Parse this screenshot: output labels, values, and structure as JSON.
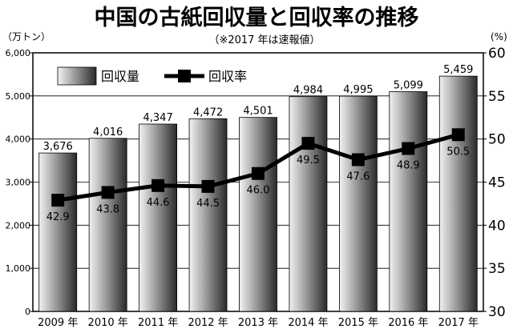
{
  "chart_data": {
    "type": "bar+line",
    "title": "中国の古紙回収量と回収率の推移",
    "subtitle": "（※2017 年は速報値）",
    "left_axis_unit": "（万トン）",
    "right_axis_unit": "(%)",
    "categories": [
      "2009 年",
      "2010 年",
      "2011 年",
      "2012 年",
      "2013 年",
      "2014 年",
      "2015 年",
      "2016 年",
      "2017 年"
    ],
    "series": [
      {
        "name": "回収量",
        "kind": "bar",
        "axis": "left",
        "values": [
          3676,
          4016,
          4347,
          4472,
          4501,
          4984,
          4995,
          5099,
          5459
        ],
        "labels": [
          "3,676",
          "4,016",
          "4,347",
          "4,472",
          "4,501",
          "4,984",
          "4,995",
          "5,099",
          "5,459"
        ]
      },
      {
        "name": "回収率",
        "kind": "line",
        "axis": "right",
        "values": [
          42.9,
          43.8,
          44.6,
          44.5,
          46.0,
          49.5,
          47.6,
          48.9,
          50.5
        ],
        "labels": [
          "42.9",
          "43.8",
          "44.6",
          "44.5",
          "46.0",
          "49.5",
          "47.6",
          "48.9",
          "50.5"
        ]
      }
    ],
    "y_left": {
      "min": 0,
      "max": 6000,
      "ticks": [
        0,
        1000,
        2000,
        3000,
        4000,
        5000,
        6000
      ],
      "tick_labels": [
        "0",
        "1,000",
        "2,000",
        "3,000",
        "4,000",
        "5,000",
        "6,000"
      ]
    },
    "y_right": {
      "min": 30,
      "max": 60,
      "ticks": [
        30,
        35,
        40,
        45,
        50,
        55,
        60
      ],
      "tick_labels": [
        "30",
        "35",
        "40",
        "45",
        "50",
        "55",
        "60"
      ]
    },
    "legend": {
      "placement": "top-left",
      "items": [
        "回収量",
        "回収率"
      ]
    },
    "grid": "horizontal, at left-axis ticks"
  }
}
